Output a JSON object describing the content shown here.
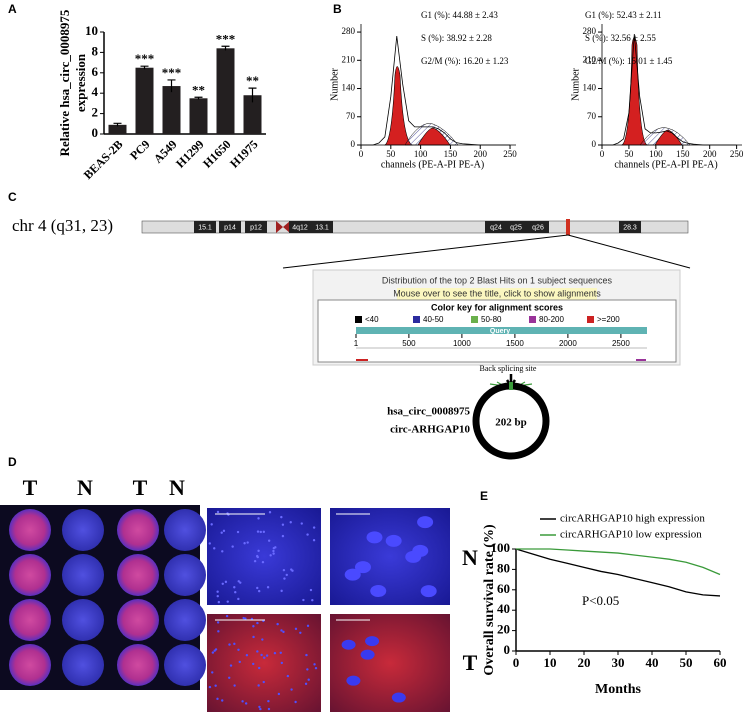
{
  "panel_labels": [
    "A",
    "B",
    "C",
    "D",
    "E"
  ],
  "chart_data": [
    {
      "type": "bar",
      "ylabel": [
        "Relative hsa_circ_0008975",
        "expression"
      ],
      "categories": [
        "BEAS-2B",
        "PC9",
        "A549",
        "H1299",
        "H1650",
        "H1975"
      ],
      "values": [
        0.9,
        6.5,
        4.7,
        3.5,
        8.4,
        3.8
      ],
      "errors": [
        0.15,
        0.15,
        0.6,
        0.1,
        0.2,
        0.7
      ],
      "annotations": [
        null,
        "***",
        "***",
        "**",
        "***",
        "**"
      ],
      "color": "#231f20",
      "ylim": [
        0,
        10
      ],
      "yticks": [
        0,
        2,
        4,
        6,
        8,
        10
      ]
    },
    {
      "type": "line",
      "xlabel": "channels (PE-A-PI PE-A)",
      "ylabel": "Number",
      "annotations": [
        "G1 (%): 44.88 ± 2.43",
        "S (%): 38.92 ± 2.28",
        "G2/M (%): 16.20 ± 1.23"
      ],
      "x": [
        0,
        10,
        20,
        30,
        40,
        50,
        60,
        70,
        80,
        90,
        100,
        110,
        120,
        130,
        140,
        150,
        160,
        170,
        180,
        190,
        200,
        210,
        220,
        230,
        240,
        250
      ],
      "series": [
        {
          "color": "#000000",
          "values": [
            0,
            0,
            0,
            5,
            20,
            120,
            270,
            150,
            60,
            45,
            45,
            45,
            45,
            40,
            30,
            15,
            6,
            3,
            2,
            1,
            0,
            0,
            0,
            0,
            0,
            0
          ]
        }
      ],
      "xlim": [
        0,
        260
      ],
      "xticks": [
        0,
        50,
        100,
        150,
        200,
        250
      ],
      "ylim": [
        0,
        300
      ],
      "yticks": [
        0,
        70,
        140,
        210,
        280
      ]
    },
    {
      "type": "line",
      "xlabel": "channels (PE-A-PI PE-A)",
      "ylabel": "Number",
      "annotations": [
        "G1 (%): 52.43 ± 2.11",
        "S (%): 32.56 ± 2.55",
        "G2/M (%): 15.01 ± 1.45"
      ],
      "x": [
        0,
        10,
        20,
        30,
        40,
        50,
        60,
        70,
        80,
        90,
        100,
        110,
        120,
        130,
        140,
        150,
        160,
        170,
        180,
        190,
        200,
        210,
        220,
        230,
        240,
        250
      ],
      "series": [
        {
          "color": "#000000",
          "values": [
            0,
            0,
            0,
            5,
            15,
            80,
            275,
            120,
            40,
            30,
            30,
            32,
            35,
            30,
            18,
            8,
            4,
            2,
            1,
            0,
            0,
            0,
            0,
            0,
            0,
            0
          ]
        }
      ],
      "xlim": [
        0,
        260
      ],
      "xticks": [
        0,
        50,
        100,
        150,
        200,
        250
      ],
      "ylim": [
        0,
        300
      ],
      "yticks": [
        0,
        70,
        140,
        210,
        280
      ]
    },
    {
      "type": "survival",
      "ylabel": "Overall survival rate (%)",
      "xlabel": "Months",
      "annotation": "P<0.05",
      "x": [
        0,
        5,
        10,
        15,
        20,
        25,
        30,
        35,
        40,
        45,
        50,
        55,
        60
      ],
      "series": [
        {
          "name": "circARHGAP10 high expression",
          "color": "#000000",
          "values": [
            100,
            95,
            90,
            86,
            82,
            78,
            75,
            71,
            67,
            63,
            58,
            55,
            54
          ]
        },
        {
          "name": "circARHGAP10 low expression",
          "color": "#3a9a3a",
          "values": [
            100,
            100,
            100,
            99,
            98,
            97,
            96,
            94,
            92,
            90,
            87,
            82,
            75
          ]
        }
      ],
      "xlim": [
        0,
        60
      ],
      "xticks": [
        0,
        10,
        20,
        30,
        40,
        50,
        60
      ],
      "ylim": [
        0,
        100
      ],
      "yticks": [
        0,
        20,
        40,
        60,
        80,
        100
      ]
    }
  ],
  "chromosome": {
    "label": "chr 4 (q31, 23)",
    "bands": [
      "15.1",
      "p14",
      "p12",
      "4q12",
      "13.1",
      "q24",
      "q25",
      "q26",
      "28.3"
    ]
  },
  "blast": {
    "title": "Distribution of the top 2 Blast Hits on 1 subject sequences",
    "hint": "Mouse over to see the title, click to show alignments",
    "key_title": "Color key for alignment scores",
    "key": [
      {
        "label": "<40",
        "color": "#000000"
      },
      {
        "label": "40-50",
        "color": "#2b2b9f"
      },
      {
        "label": "50-80",
        "color": "#6ab04c"
      },
      {
        "label": "80-200",
        "color": "#993399"
      },
      {
        "label": ">=200",
        "color": "#cc2222"
      }
    ],
    "query_label": "Query",
    "query_ticks": [
      1,
      500,
      1000,
      1500,
      2000,
      2500
    ]
  },
  "circ": {
    "site": "Back splicing site",
    "name": "hsa_circ_0008975",
    "alias": "circ-ARHGAP10",
    "length": "202 bp"
  },
  "tissue": {
    "columns": [
      "T",
      "N",
      "T",
      "N"
    ],
    "rows": [
      "N",
      "T"
    ]
  }
}
